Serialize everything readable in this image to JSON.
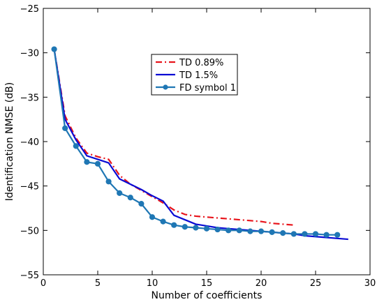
{
  "chart_data": {
    "type": "line",
    "xlabel": "Number of coefficients",
    "ylabel": "Identification NMSE (dB)",
    "xlim": [
      0,
      30
    ],
    "ylim": [
      -55,
      -25
    ],
    "xticks": [
      0,
      5,
      10,
      15,
      20,
      25,
      30
    ],
    "yticks": [
      -55,
      -50,
      -45,
      -40,
      -35,
      -30,
      -25
    ],
    "xtick_labels": [
      "0",
      "5",
      "10",
      "15",
      "20",
      "25",
      "30"
    ],
    "ytick_labels": [
      "−55",
      "−50",
      "−45",
      "−40",
      "−35",
      "−30",
      "−25"
    ],
    "grid": false,
    "legend_position": "upper-center",
    "series": [
      {
        "name": "TD 0.89%",
        "color": "#e8141b",
        "style": "dash-dot",
        "marker": "none",
        "x": [
          1,
          2,
          3,
          4,
          5,
          6,
          7,
          8,
          9,
          10,
          11,
          12,
          13,
          14,
          15,
          16,
          17,
          18,
          19,
          20,
          21,
          22,
          23
        ],
        "y": [
          -29.6,
          -37.1,
          -39.6,
          -41.3,
          -41.7,
          -42.0,
          -43.8,
          -44.8,
          -45.5,
          -46.2,
          -46.9,
          -47.7,
          -48.2,
          -48.4,
          -48.5,
          -48.6,
          -48.7,
          -48.8,
          -48.9,
          -49.0,
          -49.2,
          -49.3,
          -49.4
        ]
      },
      {
        "name": "TD 1.5%",
        "color": "#0a0ad4",
        "style": "solid",
        "marker": "none",
        "x": [
          1,
          2,
          3,
          4,
          5,
          6,
          7,
          8,
          9,
          10,
          11,
          12,
          13,
          14,
          15,
          16,
          17,
          18,
          19,
          20,
          21,
          22,
          23,
          24,
          25,
          26,
          27,
          28
        ],
        "y": [
          -29.6,
          -37.5,
          -39.8,
          -41.6,
          -42.0,
          -42.4,
          -44.2,
          -44.8,
          -45.4,
          -46.1,
          -46.7,
          -48.3,
          -48.8,
          -49.3,
          -49.5,
          -49.7,
          -49.8,
          -49.9,
          -50.0,
          -50.1,
          -50.2,
          -50.3,
          -50.4,
          -50.6,
          -50.7,
          -50.8,
          -50.9,
          -51.0
        ]
      },
      {
        "name": "FD symbol 1",
        "color": "#1f77b4",
        "style": "solid",
        "marker": "circle",
        "x": [
          1,
          2,
          3,
          4,
          5,
          6,
          7,
          8,
          9,
          10,
          11,
          12,
          13,
          14,
          15,
          16,
          17,
          18,
          19,
          20,
          21,
          22,
          23,
          24,
          25,
          26,
          27
        ],
        "y": [
          -29.6,
          -38.5,
          -40.5,
          -42.3,
          -42.5,
          -44.5,
          -45.8,
          -46.3,
          -47.0,
          -48.5,
          -49.0,
          -49.4,
          -49.6,
          -49.7,
          -49.8,
          -49.9,
          -50.0,
          -50.0,
          -50.1,
          -50.1,
          -50.2,
          -50.3,
          -50.4,
          -50.4,
          -50.4,
          -50.5,
          -50.5
        ]
      }
    ]
  }
}
